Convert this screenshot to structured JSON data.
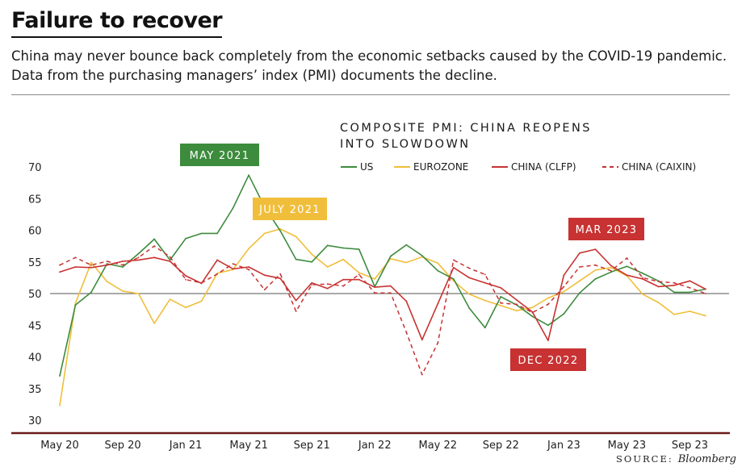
{
  "headline": "Failure to recover",
  "deck": "China may never bounce back completely from the economic setbacks caused by the COVID-19 pandemic. Data from the purchasing managers’ index (PMI) documents the decline.",
  "source_label": "SOURCE:",
  "source_name": "Bloomberg",
  "colors": {
    "us": "#3d8b3d",
    "eurozone": "#f0be3a",
    "china_clfp": "#c83232",
    "china_caixin": "#c83232",
    "ref_line": "#555555",
    "axis_line": "#6b1a1a"
  },
  "chart_data": {
    "type": "line",
    "title": "COMPOSITE PMI: CHINA REOPENS INTO SLOWDOWN",
    "title_lines": [
      "COMPOSITE PMI: CHINA REOPENS",
      "INTO SLOWDOWN"
    ],
    "legend_position": "top-right",
    "ylim": [
      29,
      72
    ],
    "yticks": [
      30,
      35,
      40,
      45,
      50,
      55,
      60,
      65,
      70
    ],
    "reference_line": 50,
    "x": [
      "May 20",
      "Jun 20",
      "Jul 20",
      "Aug 20",
      "Sep 20",
      "Oct 20",
      "Nov 20",
      "Dec 20",
      "Jan 21",
      "Feb 21",
      "Mar 21",
      "Apr 21",
      "May 21",
      "Jun 21",
      "Jul 21",
      "Aug 21",
      "Sep 21",
      "Oct 21",
      "Nov 21",
      "Dec 21",
      "Jan 22",
      "Feb 22",
      "Mar 22",
      "Apr 22",
      "May 22",
      "Jun 22",
      "Jul 22",
      "Aug 22",
      "Sep 22",
      "Oct 22",
      "Nov 22",
      "Dec 22",
      "Jan 23",
      "Feb 23",
      "Mar 23",
      "Apr 23",
      "May 23",
      "Jun 23",
      "Jul 23",
      "Aug 23",
      "Sep 23",
      "Oct 23"
    ],
    "xtick_labels": [
      {
        "index": 0,
        "label": "May 20"
      },
      {
        "index": 4,
        "label": "Sep 20"
      },
      {
        "index": 8,
        "label": "Jan 21"
      },
      {
        "index": 12,
        "label": "May 21"
      },
      {
        "index": 16,
        "label": "Sep 21"
      },
      {
        "index": 20,
        "label": "Jan 22"
      },
      {
        "index": 24,
        "label": "May 22"
      },
      {
        "index": 28,
        "label": "Sep 22"
      },
      {
        "index": 32,
        "label": "Jan 23"
      },
      {
        "index": 36,
        "label": "May 23"
      },
      {
        "index": 40,
        "label": "Sep 23"
      }
    ],
    "series": [
      {
        "key": "us",
        "name": "US",
        "dashed": false,
        "values": [
          37.0,
          48.2,
          50.2,
          54.7,
          54.2,
          56.3,
          58.6,
          55.3,
          58.7,
          59.5,
          59.5,
          63.5,
          68.7,
          63.7,
          59.9,
          55.4,
          55.0,
          57.6,
          57.2,
          57.0,
          51.1,
          55.9,
          57.7,
          56.0,
          53.6,
          52.3,
          47.7,
          44.6,
          49.5,
          48.2,
          46.4,
          45.0,
          46.8,
          50.1,
          52.3,
          53.4,
          54.3,
          53.2,
          52.0,
          50.2,
          50.2,
          50.7
        ]
      },
      {
        "key": "eurozone",
        "name": "EUROZONE",
        "dashed": false,
        "values": [
          32.3,
          48.5,
          54.9,
          51.9,
          50.4,
          50.0,
          45.3,
          49.1,
          47.8,
          48.8,
          53.2,
          53.8,
          57.1,
          59.5,
          60.2,
          59.0,
          56.2,
          54.2,
          55.4,
          53.3,
          52.3,
          55.5,
          54.9,
          55.8,
          54.8,
          52.0,
          49.9,
          48.9,
          48.1,
          47.3,
          47.8,
          49.3,
          50.3,
          52.0,
          53.7,
          54.1,
          52.8,
          49.9,
          48.6,
          46.7,
          47.2,
          46.5
        ]
      },
      {
        "key": "china_clfp",
        "name": "CHINA (CLFP)",
        "dashed": false,
        "values": [
          53.4,
          54.2,
          54.1,
          54.5,
          55.1,
          55.3,
          55.7,
          55.1,
          52.8,
          51.6,
          55.3,
          53.9,
          54.2,
          52.9,
          52.4,
          48.9,
          51.7,
          50.8,
          52.2,
          52.2,
          51.0,
          51.2,
          48.8,
          42.7,
          48.4,
          54.1,
          52.5,
          51.7,
          50.9,
          49.0,
          47.1,
          42.6,
          52.9,
          56.4,
          57.0,
          54.4,
          52.9,
          52.3,
          51.1,
          51.3,
          52.0,
          50.7
        ]
      },
      {
        "key": "china_caixin",
        "name": "CHINA (CAIXIN)",
        "dashed": true,
        "values": [
          54.5,
          55.7,
          54.5,
          55.1,
          54.5,
          55.7,
          57.5,
          55.8,
          52.2,
          51.7,
          53.1,
          54.7,
          53.8,
          50.6,
          53.1,
          47.2,
          51.4,
          51.5,
          51.2,
          53.0,
          50.1,
          50.1,
          43.9,
          37.2,
          42.2,
          55.3,
          54.0,
          53.0,
          48.5,
          48.3,
          47.0,
          48.3,
          51.1,
          54.2,
          54.5,
          53.6,
          55.6,
          52.5,
          51.9,
          51.7,
          50.9,
          50.0
        ]
      }
    ],
    "annotations": [
      {
        "text": "MAY 2021",
        "series": "us",
        "index": 12,
        "color": "#3d8b3d"
      },
      {
        "text": "JULY 2021",
        "series": "eurozone",
        "index": 14,
        "color": "#f0be3a"
      },
      {
        "text": "MAR 2023",
        "series": "china_clfp",
        "index": 34,
        "color": "#c83232"
      },
      {
        "text": "DEC 2022",
        "series": "china_clfp",
        "index": 31,
        "color": "#c83232"
      }
    ]
  }
}
